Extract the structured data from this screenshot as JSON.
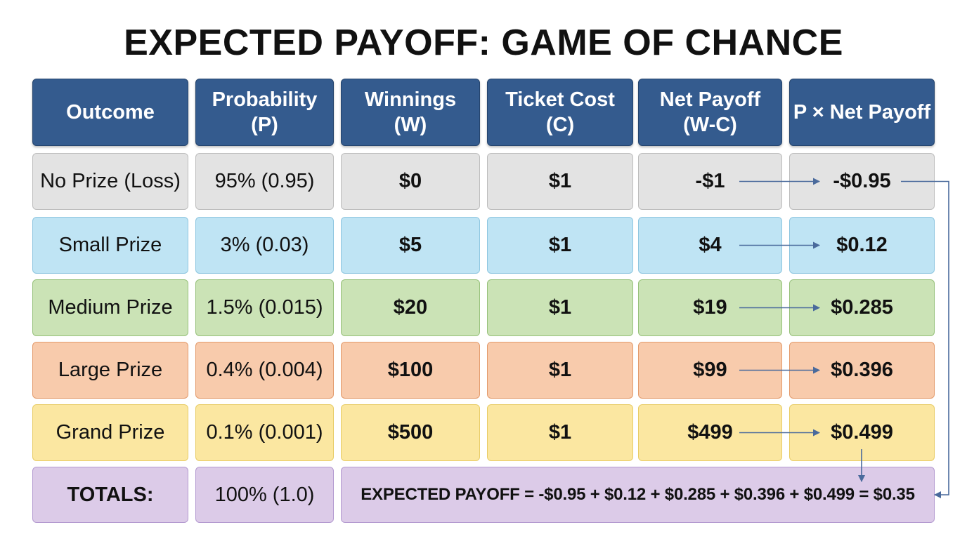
{
  "title": "EXPECTED PAYOFF: GAME OF CHANCE",
  "headers": [
    "Outcome",
    "Probability\n(P)",
    "Winnings\n(W)",
    "Ticket Cost\n(C)",
    "Net Payoff\n(W-C)",
    "P × Net Payoff"
  ],
  "rows": [
    {
      "outcome": "No Prize (Loss)",
      "probability": "95% (0.95)",
      "winnings": "$0",
      "cost": "$1",
      "net": "-$1",
      "product": "-$0.95",
      "fill": "#e3e3e3",
      "border": "#bdbdbd"
    },
    {
      "outcome": "Small Prize",
      "probability": "3% (0.03)",
      "winnings": "$5",
      "cost": "$1",
      "net": "$4",
      "product": "$0.12",
      "fill": "#bfe4f4",
      "border": "#8ec6e0"
    },
    {
      "outcome": "Medium Prize",
      "probability": "1.5% (0.015)",
      "winnings": "$20",
      "cost": "$1",
      "net": "$19",
      "product": "$0.285",
      "fill": "#cbe3b6",
      "border": "#97c17b"
    },
    {
      "outcome": "Large Prize",
      "probability": "0.4% (0.004)",
      "winnings": "$100",
      "cost": "$1",
      "net": "$99",
      "product": "$0.396",
      "fill": "#f8cbac",
      "border": "#e39b6c"
    },
    {
      "outcome": "Grand Prize",
      "probability": "0.1% (0.001)",
      "winnings": "$500",
      "cost": "$1",
      "net": "$499",
      "product": "$0.499",
      "fill": "#fbe7a1",
      "border": "#e8cc66"
    }
  ],
  "totals": {
    "label": "TOTALS:",
    "probability": "100% (1.0)",
    "equation": "EXPECTED PAYOFF = -$0.95 + $0.12 + $0.285 + $0.396 + $0.499 = $0.35",
    "fill": "#dccbe8",
    "border": "#b49ad0"
  },
  "arrow_color": "#4a6a9c"
}
